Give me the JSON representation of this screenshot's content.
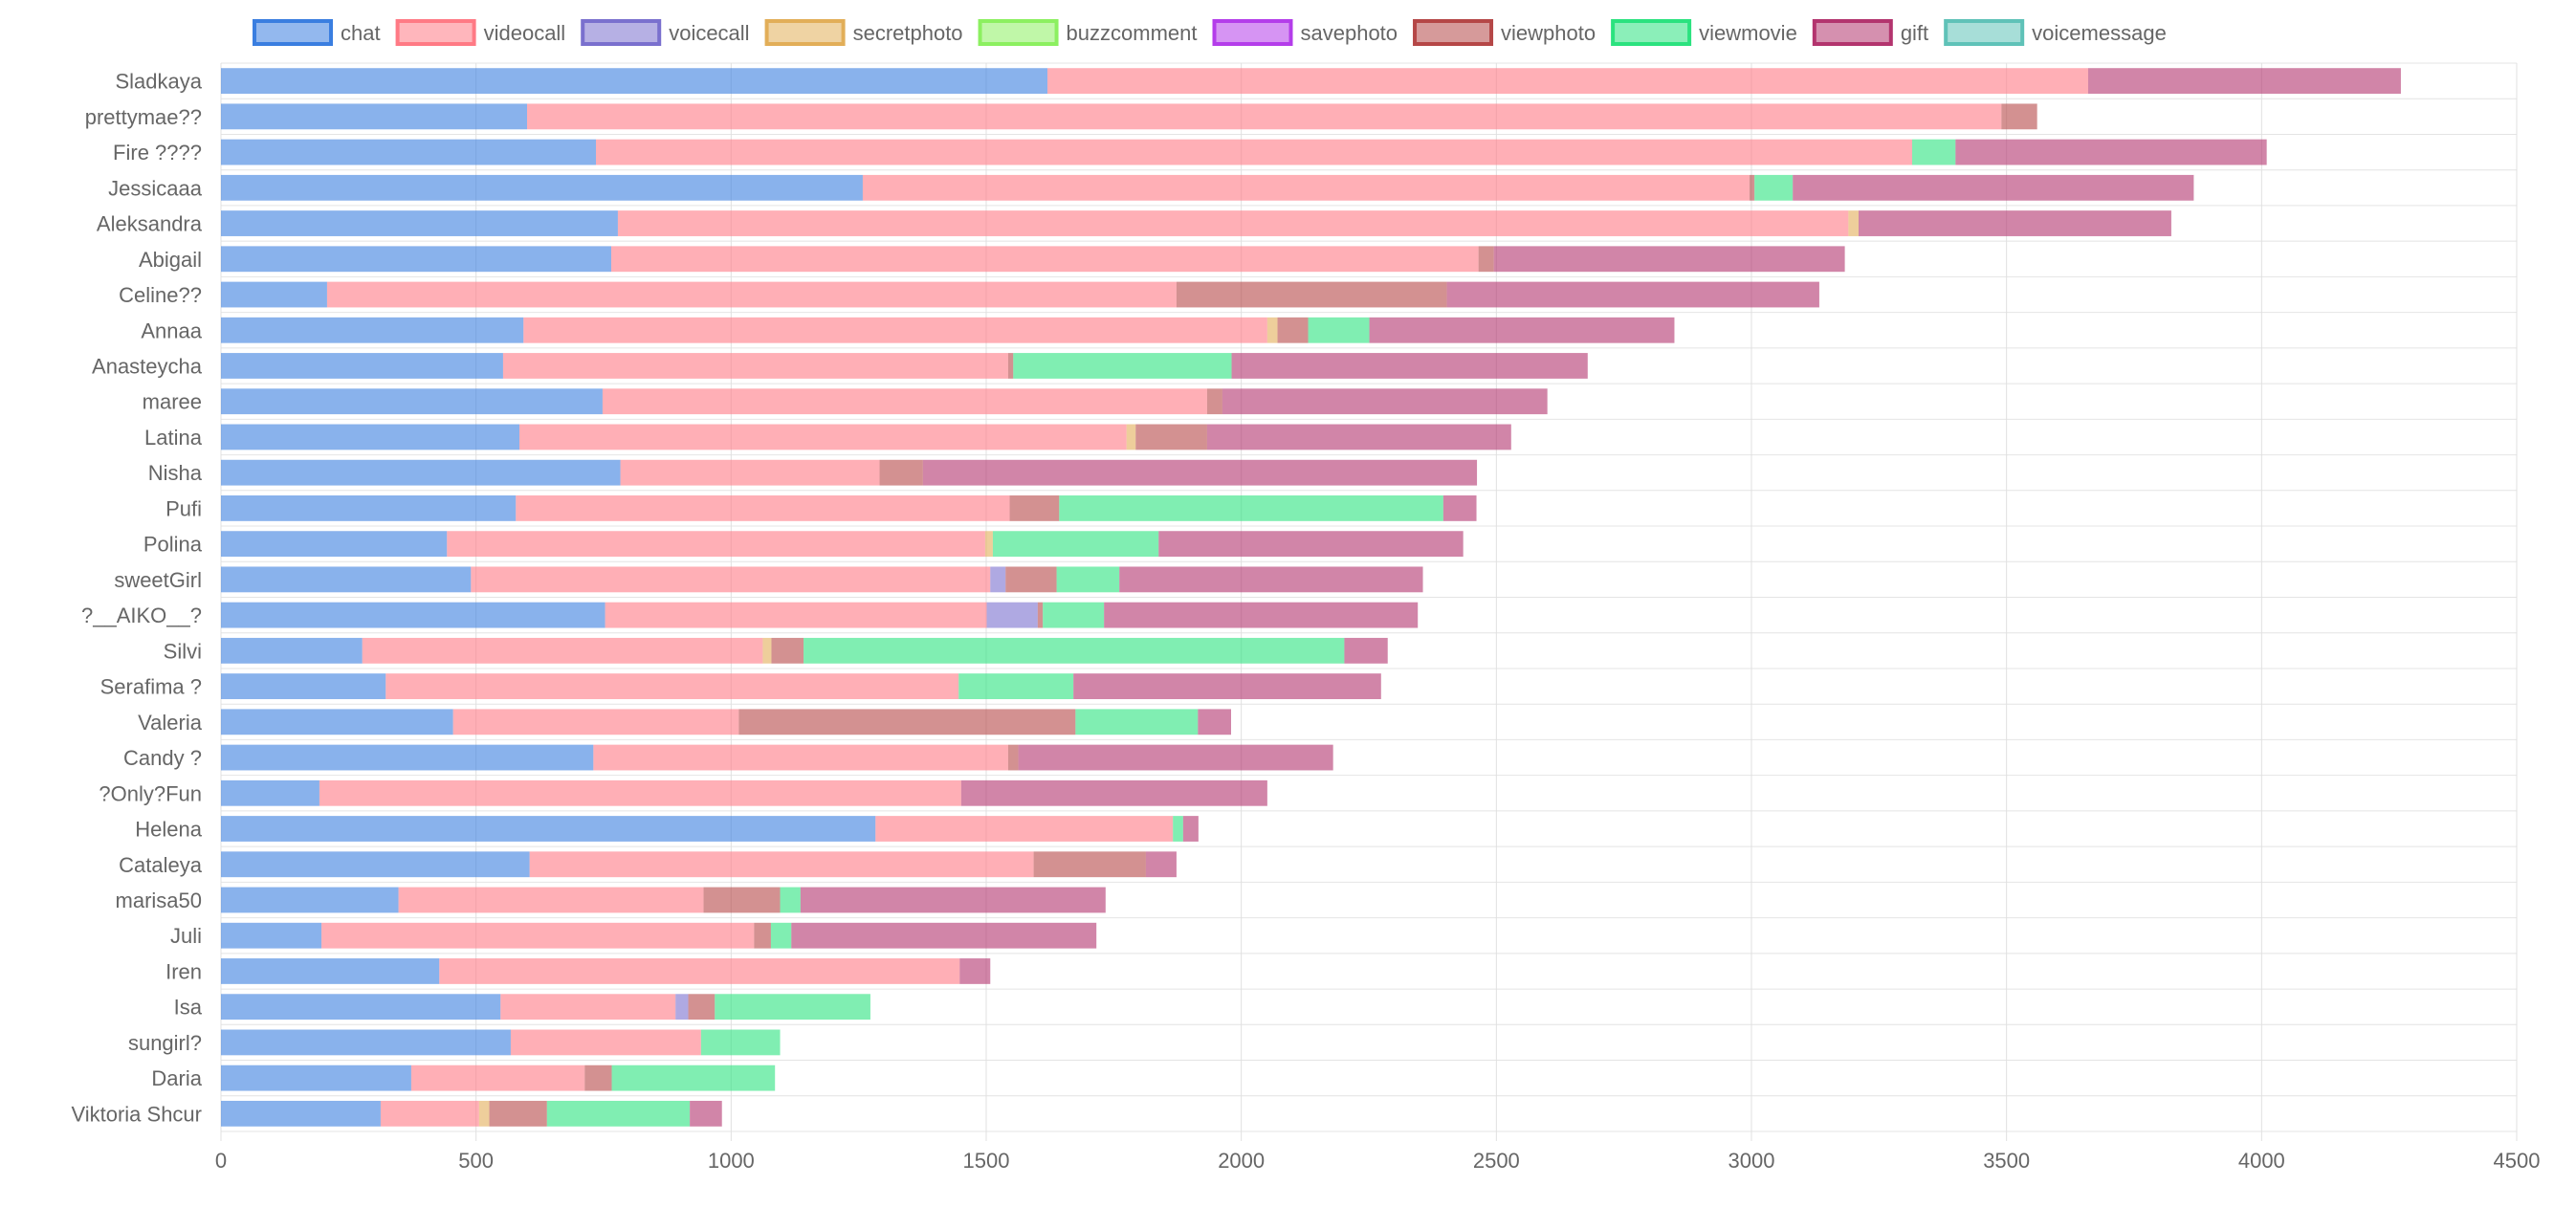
{
  "chart_data": {
    "type": "bar",
    "orientation": "horizontal",
    "stacked": true,
    "title": "",
    "xlabel": "",
    "ylabel": "",
    "xlim": [
      0,
      4500
    ],
    "x_ticks": [
      0,
      500,
      1000,
      1500,
      2000,
      2500,
      3000,
      3500,
      4000,
      4500
    ],
    "grid": true,
    "legend_position": "top",
    "categories": [
      "Sladkaya",
      "prettymae??",
      "Fire ????",
      "Jessicaaa",
      "Aleksandra",
      "Abigail",
      "Celine??",
      "Annaa",
      "Anasteycha",
      "maree",
      "Latina",
      "Nisha",
      "Pufi",
      "Polina",
      "sweetGirl",
      "?__AIKO__?",
      "Silvi",
      "Serafima ?",
      "Valeria",
      "Candy ?",
      "?Only?Fun",
      "Helena",
      "Cataleya",
      "marisa50",
      "Juli",
      "Iren",
      "Isa",
      "sungirl?",
      "Daria",
      "Viktoria Shcur"
    ],
    "series": [
      {
        "name": "chat",
        "color": "#3A7EE0",
        "values": [
          1620,
          600,
          735,
          1258,
          778,
          765,
          208,
          593,
          553,
          748,
          585,
          783,
          578,
          443,
          490,
          753,
          277,
          323,
          455,
          730,
          193,
          1283,
          605,
          348,
          197,
          428,
          548,
          568,
          373,
          313
        ]
      },
      {
        "name": "videocall",
        "color": "#FF7A85",
        "values": [
          2040,
          2890,
          2580,
          1738,
          2412,
          1700,
          1665,
          1458,
          990,
          1185,
          1190,
          508,
          968,
          1055,
          1018,
          748,
          785,
          1123,
          560,
          813,
          1258,
          583,
          988,
          598,
          848,
          1020,
          343,
          373,
          340,
          193
        ]
      },
      {
        "name": "voicecall",
        "color": "#7A70CE",
        "values": [
          0,
          0,
          0,
          0,
          0,
          0,
          0,
          0,
          0,
          0,
          0,
          0,
          0,
          0,
          30,
          100,
          0,
          0,
          0,
          0,
          0,
          0,
          0,
          0,
          0,
          0,
          25,
          0,
          0,
          0
        ]
      },
      {
        "name": "secretphoto",
        "color": "#E2AE58",
        "values": [
          0,
          0,
          0,
          0,
          20,
          0,
          0,
          20,
          0,
          0,
          18,
          0,
          0,
          15,
          0,
          0,
          17,
          0,
          0,
          0,
          0,
          0,
          0,
          0,
          0,
          0,
          0,
          0,
          0,
          20
        ]
      },
      {
        "name": "buzzcomment",
        "color": "#8CF060",
        "values": [
          0,
          0,
          0,
          0,
          0,
          0,
          0,
          0,
          0,
          0,
          0,
          0,
          0,
          0,
          0,
          0,
          0,
          0,
          0,
          0,
          0,
          0,
          0,
          0,
          0,
          0,
          0,
          0,
          0,
          0
        ]
      },
      {
        "name": "savephoto",
        "color": "#B43DEA",
        "values": [
          0,
          0,
          0,
          0,
          0,
          0,
          0,
          0,
          0,
          0,
          0,
          0,
          0,
          0,
          0,
          0,
          0,
          0,
          0,
          0,
          0,
          0,
          0,
          0,
          0,
          0,
          0,
          0,
          0,
          0
        ]
      },
      {
        "name": "viewphoto",
        "color": "#B54747",
        "values": [
          0,
          70,
          0,
          10,
          0,
          30,
          530,
          60,
          10,
          30,
          140,
          85,
          97,
          0,
          100,
          10,
          63,
          0,
          660,
          20,
          0,
          0,
          220,
          150,
          33,
          0,
          52,
          0,
          53,
          113
        ]
      },
      {
        "name": "viewmovie",
        "color": "#2BE27F",
        "values": [
          0,
          0,
          85,
          75,
          0,
          0,
          0,
          120,
          428,
          0,
          0,
          0,
          753,
          325,
          123,
          120,
          1060,
          225,
          240,
          0,
          0,
          20,
          0,
          40,
          40,
          0,
          305,
          155,
          320,
          280
        ]
      },
      {
        "name": "gift",
        "color": "#B3346E",
        "values": [
          613,
          0,
          610,
          786,
          613,
          688,
          730,
          598,
          698,
          637,
          596,
          1086,
          65,
          597,
          595,
          615,
          85,
          603,
          65,
          617,
          600,
          30,
          60,
          598,
          598,
          60,
          0,
          0,
          0,
          63
        ]
      },
      {
        "name": "voicemessage",
        "color": "#5FC2B8",
        "values": [
          0,
          0,
          0,
          0,
          0,
          0,
          0,
          0,
          0,
          0,
          0,
          0,
          0,
          0,
          0,
          0,
          0,
          0,
          0,
          0,
          0,
          0,
          0,
          0,
          0,
          0,
          0,
          0,
          0,
          0
        ]
      }
    ]
  }
}
